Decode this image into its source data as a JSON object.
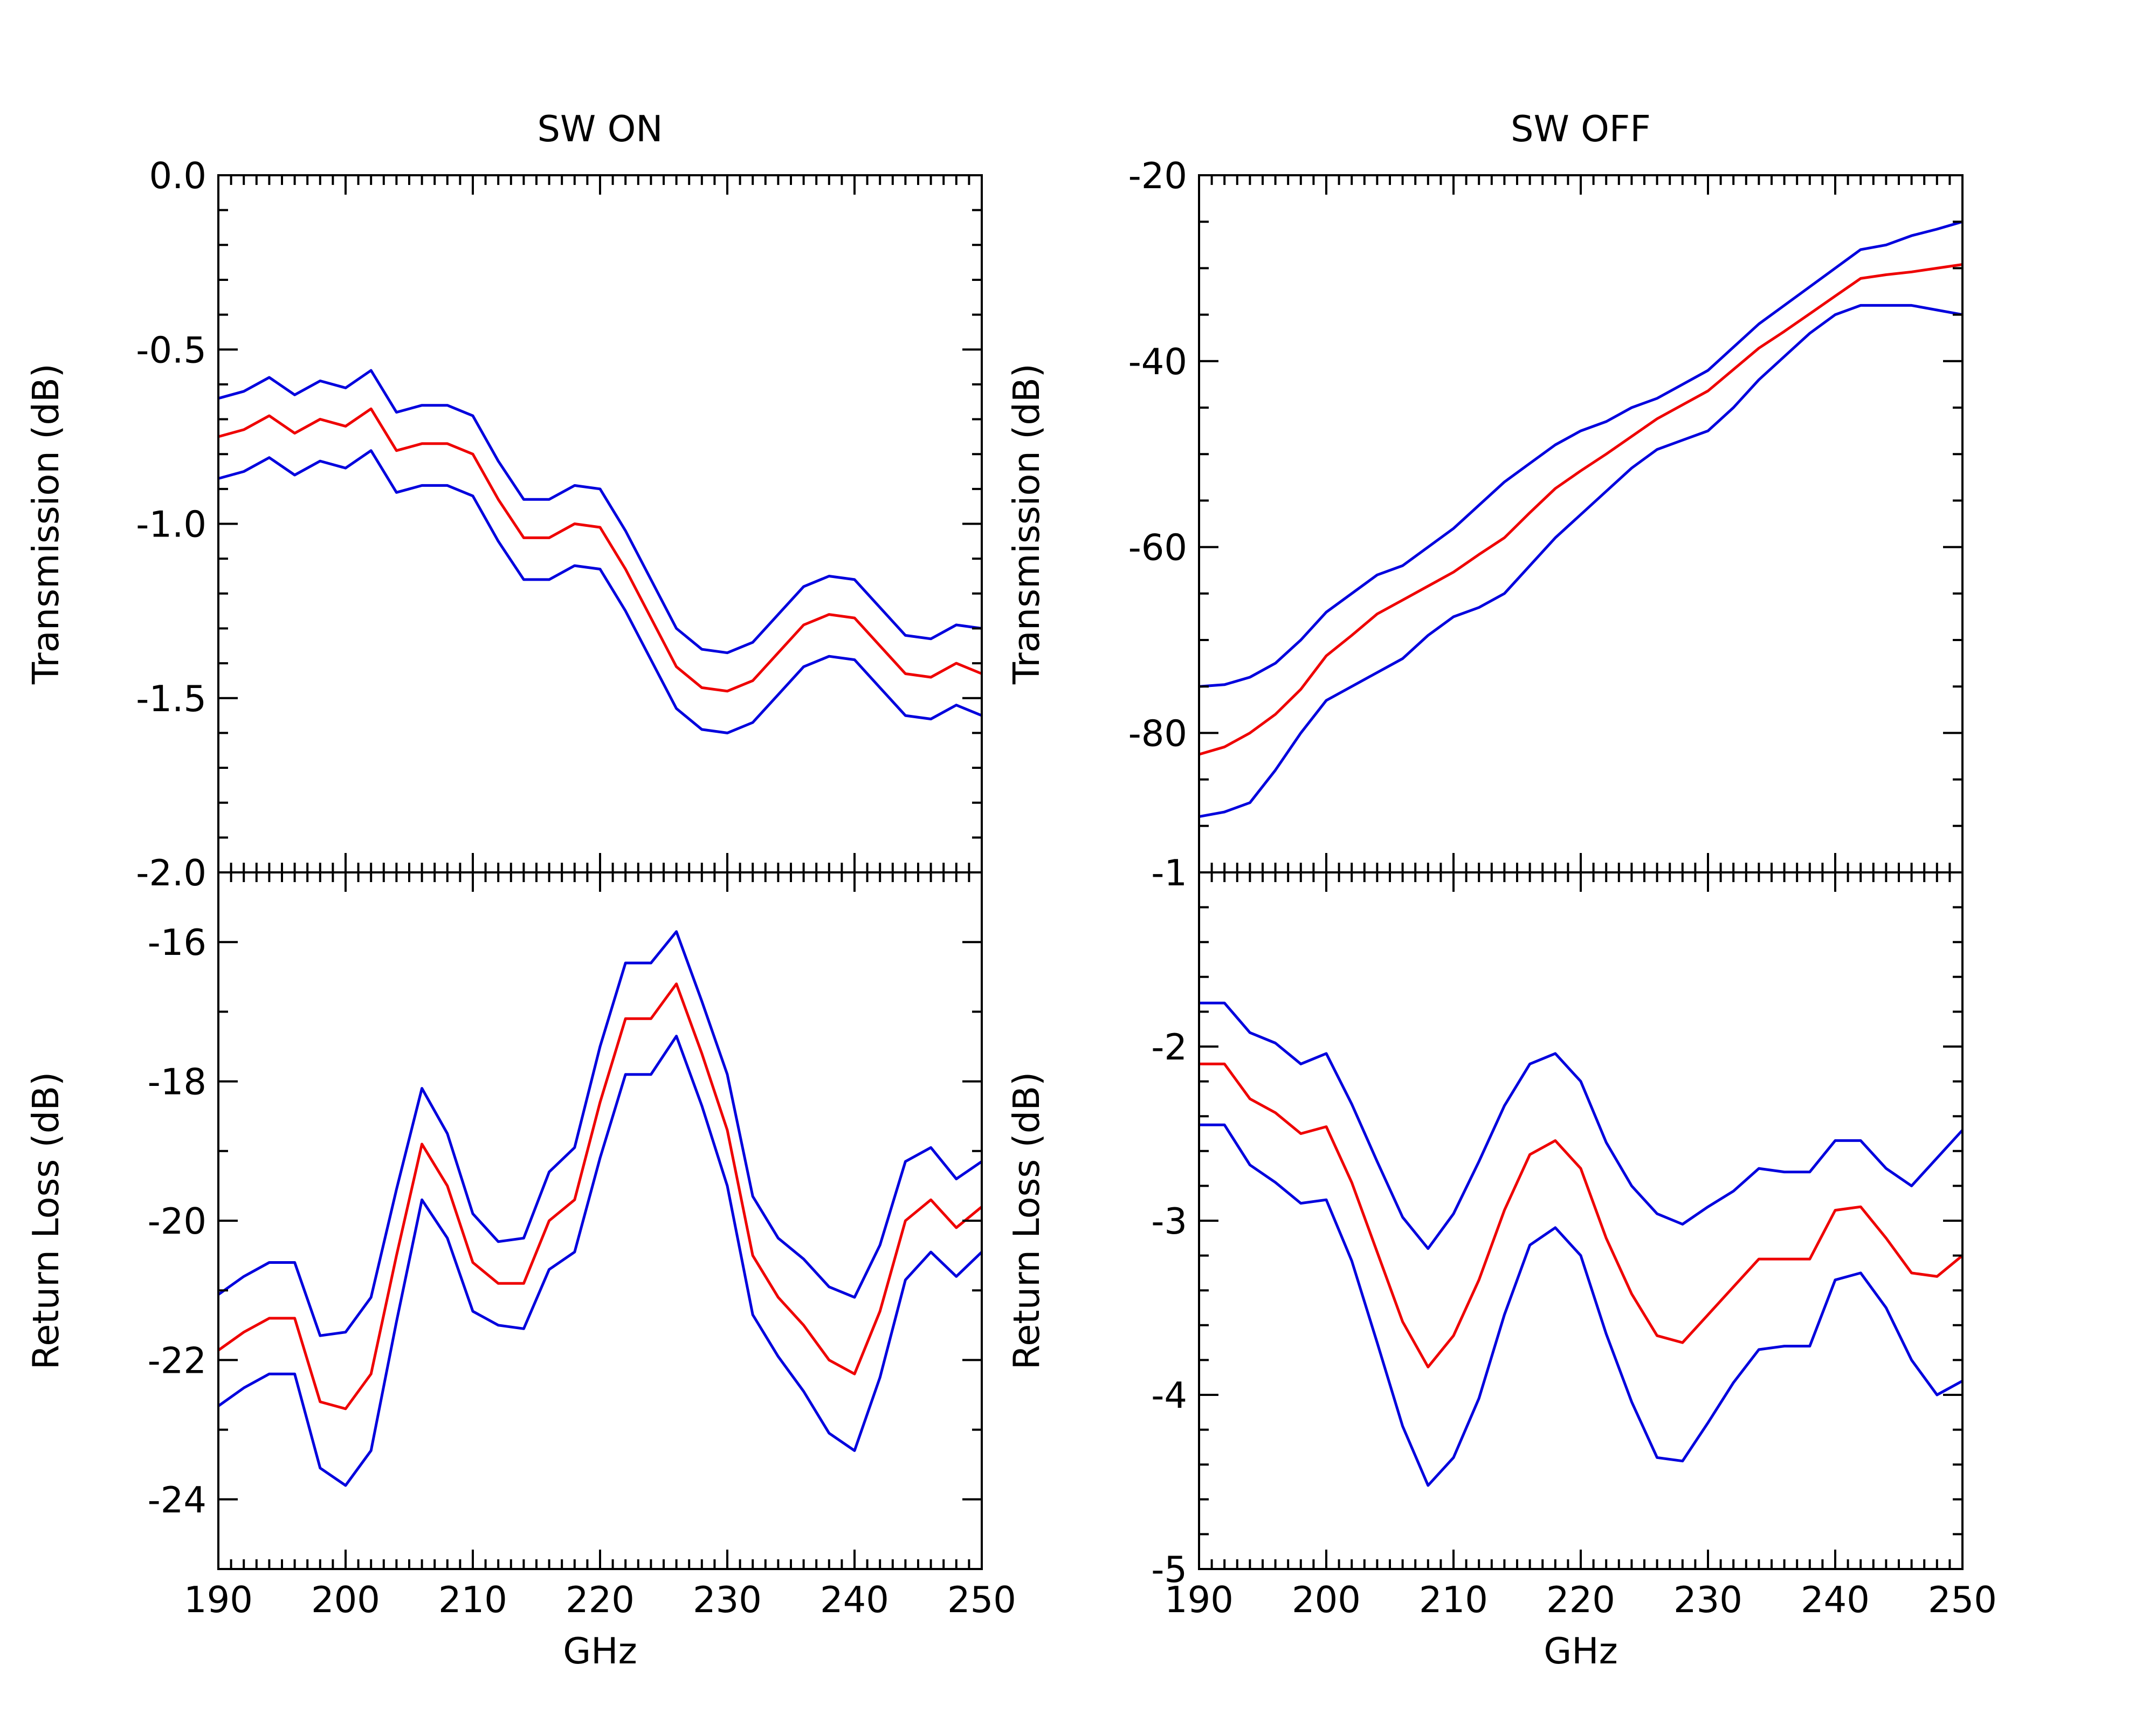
{
  "chart_data": [
    {
      "type": "line",
      "title": "SW ON",
      "ylabel": "Transmission (dB)",
      "x": [
        190,
        192,
        194,
        196,
        198,
        200,
        202,
        204,
        206,
        208,
        210,
        212,
        214,
        216,
        218,
        220,
        222,
        224,
        226,
        228,
        230,
        232,
        234,
        236,
        238,
        240,
        242,
        244,
        246,
        248,
        250
      ],
      "series": [
        {
          "color": "#0000dd",
          "values": [
            -0.64,
            -0.62,
            -0.58,
            -0.63,
            -0.59,
            -0.61,
            -0.56,
            -0.68,
            -0.66,
            -0.66,
            -0.69,
            -0.82,
            -0.93,
            -0.93,
            -0.89,
            -0.9,
            -1.02,
            -1.16,
            -1.3,
            -1.36,
            -1.37,
            -1.34,
            -1.26,
            -1.18,
            -1.15,
            -1.16,
            -1.24,
            -1.32,
            -1.33,
            -1.29,
            -1.3
          ]
        },
        {
          "color": "#ee0000",
          "values": [
            -0.75,
            -0.73,
            -0.69,
            -0.74,
            -0.7,
            -0.72,
            -0.67,
            -0.79,
            -0.77,
            -0.77,
            -0.8,
            -0.93,
            -1.04,
            -1.04,
            -1.0,
            -1.01,
            -1.13,
            -1.27,
            -1.41,
            -1.47,
            -1.48,
            -1.45,
            -1.37,
            -1.29,
            -1.26,
            -1.27,
            -1.35,
            -1.43,
            -1.44,
            -1.4,
            -1.43
          ]
        },
        {
          "color": "#0000dd",
          "values": [
            -0.87,
            -0.85,
            -0.81,
            -0.86,
            -0.82,
            -0.84,
            -0.79,
            -0.91,
            -0.89,
            -0.89,
            -0.92,
            -1.05,
            -1.16,
            -1.16,
            -1.12,
            -1.13,
            -1.25,
            -1.39,
            -1.53,
            -1.59,
            -1.6,
            -1.57,
            -1.49,
            -1.41,
            -1.38,
            -1.39,
            -1.47,
            -1.55,
            -1.56,
            -1.52,
            -1.55
          ]
        }
      ],
      "xlim": [
        190,
        250
      ],
      "xticks": [
        190,
        200,
        210,
        220,
        230,
        240,
        250
      ],
      "xminor": 10,
      "show_xtick_labels": false,
      "ylim": [
        -2,
        0
      ],
      "yticks": [
        {
          "value": -2,
          "label": "-2.0"
        },
        {
          "value": -1.5,
          "label": "-1.5"
        },
        {
          "value": -1,
          "label": "-1.0"
        },
        {
          "value": -0.5,
          "label": "-0.5"
        },
        {
          "value": 0,
          "label": "0.0"
        }
      ],
      "yminor": 5
    },
    {
      "type": "line",
      "title": "SW OFF",
      "ylabel": "Transmission (dB)",
      "x": [
        190,
        192,
        194,
        196,
        198,
        200,
        202,
        204,
        206,
        208,
        210,
        212,
        214,
        216,
        218,
        220,
        222,
        224,
        226,
        228,
        230,
        232,
        234,
        236,
        238,
        240,
        242,
        244,
        246,
        248,
        250
      ],
      "series": [
        {
          "color": "#0000dd",
          "values": [
            -75,
            -74.8,
            -74,
            -72.5,
            -70,
            -67,
            -65,
            -63,
            -62,
            -60,
            -58,
            -55.5,
            -53,
            -51,
            -49,
            -47.5,
            -46.5,
            -45,
            -44,
            -42.5,
            -41,
            -38.5,
            -36,
            -34,
            -32,
            -30,
            -28,
            -27.5,
            -26.5,
            -25.8,
            -25
          ]
        },
        {
          "color": "#ee0000",
          "values": [
            -82.3,
            -81.5,
            -80,
            -78,
            -75.3,
            -71.7,
            -69.5,
            -67.2,
            -65.7,
            -64.2,
            -62.7,
            -60.8,
            -59,
            -56.3,
            -53.7,
            -51.8,
            -50,
            -48.1,
            -46.2,
            -44.7,
            -43.2,
            -40.9,
            -38.6,
            -36.8,
            -34.9,
            -33,
            -31.1,
            -30.7,
            -30.4,
            -30,
            -29.6
          ]
        },
        {
          "color": "#0000dd",
          "values": [
            -89,
            -88.5,
            -87.5,
            -84,
            -80,
            -76.5,
            -75,
            -73.5,
            -72,
            -69.5,
            -67.5,
            -66.5,
            -65,
            -62,
            -59,
            -56.5,
            -54,
            -51.5,
            -49.5,
            -48.5,
            -47.5,
            -45,
            -42,
            -39.5,
            -37,
            -35,
            -34,
            -34,
            -34,
            -34.5,
            -35
          ]
        }
      ],
      "xlim": [
        190,
        250
      ],
      "xticks": [
        190,
        200,
        210,
        220,
        230,
        240,
        250
      ],
      "xminor": 10,
      "show_xtick_labels": false,
      "ylim": [
        -95,
        -20
      ],
      "yticks": [
        -80,
        -60,
        -40,
        -20
      ],
      "yminor": 4
    },
    {
      "type": "line",
      "ylabel": "Return Loss (dB)",
      "xlabel": "GHz",
      "x": [
        190,
        192,
        194,
        196,
        198,
        200,
        202,
        204,
        206,
        208,
        210,
        212,
        214,
        216,
        218,
        220,
        222,
        224,
        226,
        228,
        230,
        232,
        234,
        236,
        238,
        240,
        242,
        244,
        246,
        248,
        250
      ],
      "series": [
        {
          "color": "#0000dd",
          "values": [
            -21.06,
            -20.8,
            -20.6,
            -20.6,
            -21.65,
            -21.6,
            -21.1,
            -19.55,
            -18.1,
            -18.75,
            -19.9,
            -20.3,
            -20.25,
            -19.3,
            -18.95,
            -17.5,
            -16.3,
            -16.3,
            -15.85,
            -16.85,
            -17.9,
            -19.65,
            -20.25,
            -20.55,
            -20.95,
            -21.1,
            -20.35,
            -19.15,
            -18.95,
            -19.4,
            -19.15
          ]
        },
        {
          "color": "#ee0000",
          "values": [
            -21.86,
            -21.6,
            -21.4,
            -21.4,
            -22.6,
            -22.7,
            -22.2,
            -20.5,
            -18.9,
            -19.5,
            -20.6,
            -20.9,
            -20.9,
            -20.0,
            -19.7,
            -18.3,
            -17.1,
            -17.1,
            -16.6,
            -17.6,
            -18.7,
            -20.5,
            -21.1,
            -21.5,
            -22.0,
            -22.2,
            -21.3,
            -20.0,
            -19.7,
            -20.1,
            -19.8
          ]
        },
        {
          "color": "#0000dd",
          "values": [
            -22.66,
            -22.4,
            -22.2,
            -22.2,
            -23.55,
            -23.8,
            -23.3,
            -21.45,
            -19.7,
            -20.25,
            -21.3,
            -21.5,
            -21.55,
            -20.7,
            -20.45,
            -19.1,
            -17.9,
            -17.9,
            -17.35,
            -18.35,
            -19.5,
            -21.35,
            -21.95,
            -22.45,
            -23.05,
            -23.3,
            -22.25,
            -20.85,
            -20.45,
            -20.8,
            -20.45
          ]
        }
      ],
      "xlim": [
        190,
        250
      ],
      "xticks": [
        190,
        200,
        210,
        220,
        230,
        240,
        250
      ],
      "xminor": 10,
      "show_xtick_labels": true,
      "ylim": [
        -25,
        -15
      ],
      "yticks": [
        -24,
        -22,
        -20,
        -18,
        -16
      ],
      "yminor": 2
    },
    {
      "type": "line",
      "ylabel": "Return Loss (dB)",
      "xlabel": "GHz",
      "x": [
        190,
        192,
        194,
        196,
        198,
        200,
        202,
        204,
        206,
        208,
        210,
        212,
        214,
        216,
        218,
        220,
        222,
        224,
        226,
        228,
        230,
        232,
        234,
        236,
        238,
        240,
        242,
        244,
        246,
        248,
        250
      ],
      "series": [
        {
          "color": "#0000dd",
          "values": [
            -1.75,
            -1.75,
            -1.92,
            -1.98,
            -2.1,
            -2.04,
            -2.33,
            -2.66,
            -2.98,
            -3.16,
            -2.96,
            -2.66,
            -2.34,
            -2.1,
            -2.04,
            -2.2,
            -2.55,
            -2.8,
            -2.96,
            -3.02,
            -2.92,
            -2.83,
            -2.7,
            -2.72,
            -2.72,
            -2.54,
            -2.54,
            -2.7,
            -2.8,
            -2.64,
            -2.48
          ]
        },
        {
          "color": "#ee0000",
          "values": [
            -2.1,
            -2.1,
            -2.3,
            -2.38,
            -2.5,
            -2.46,
            -2.78,
            -3.18,
            -3.58,
            -3.84,
            -3.66,
            -3.34,
            -2.94,
            -2.62,
            -2.54,
            -2.7,
            -3.1,
            -3.42,
            -3.66,
            -3.7,
            -3.54,
            -3.38,
            -3.22,
            -3.22,
            -3.22,
            -2.94,
            -2.92,
            -3.1,
            -3.3,
            -3.32,
            -3.2
          ]
        },
        {
          "color": "#0000dd",
          "values": [
            -2.45,
            -2.45,
            -2.68,
            -2.78,
            -2.9,
            -2.88,
            -3.23,
            -3.7,
            -4.18,
            -4.52,
            -4.36,
            -4.02,
            -3.54,
            -3.14,
            -3.04,
            -3.2,
            -3.65,
            -4.04,
            -4.36,
            -4.38,
            -4.16,
            -3.93,
            -3.74,
            -3.72,
            -3.72,
            -3.34,
            -3.3,
            -3.5,
            -3.8,
            -4.0,
            -3.92
          ]
        }
      ],
      "xlim": [
        190,
        250
      ],
      "xticks": [
        190,
        200,
        210,
        220,
        230,
        240,
        250
      ],
      "xminor": 10,
      "show_xtick_labels": true,
      "ylim": [
        -5,
        -1
      ],
      "yticks": [
        -5,
        -4,
        -3,
        -2,
        -1
      ],
      "yminor": 5
    }
  ]
}
